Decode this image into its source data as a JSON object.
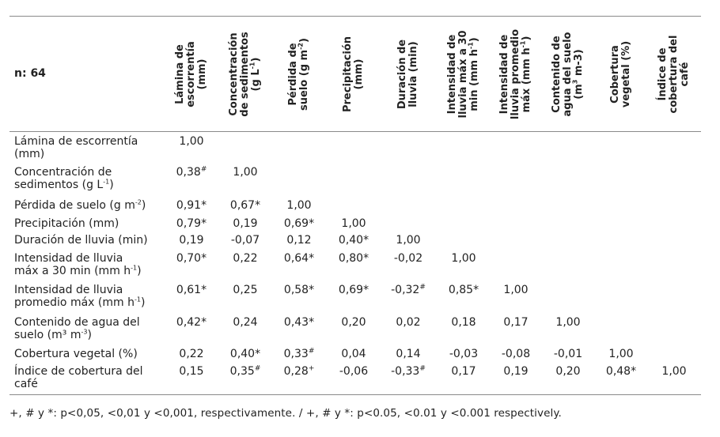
{
  "table": {
    "n_label": "n: 64",
    "columns": [
      {
        "main": "Lámina de\nescorrentía\n(mm)",
        "sup": "",
        "tail": ""
      },
      {
        "main": "Concentración\nde sedimentos\n(g L",
        "sup": "-1",
        "tail": ")"
      },
      {
        "main": "Pérdida de\nsuelo (g m",
        "sup": "-2",
        "tail": ")"
      },
      {
        "main": "Precipitación\n(mm)",
        "sup": "",
        "tail": ""
      },
      {
        "main": "Duración de\nlluvia (min)",
        "sup": "",
        "tail": ""
      },
      {
        "main": "Intensidad de\nlluvia máx a 30\nmin (mm h",
        "sup": "-1",
        "tail": ")"
      },
      {
        "main": "Intensidad de\nlluvia promedio\nmáx (mm h",
        "sup": "-1",
        "tail": ")"
      },
      {
        "main": "Contenido de\nagua del suelo\n(m",
        "sup": "3",
        "tail": " m-3)"
      },
      {
        "main": "Cobertura\nvegetal (%)",
        "sup": "",
        "tail": ""
      },
      {
        "main": "Índice de\ncobertura del\ncafé",
        "sup": "",
        "tail": ""
      }
    ],
    "rows": [
      {
        "label_main": "Lámina de escorrentía\n(mm)",
        "label_sup": "",
        "label_tail": "",
        "cells": [
          {
            "v": "1,00",
            "m": ""
          }
        ]
      },
      {
        "label_main": "Concentración de\nsedimentos (g L",
        "label_sup": "-1",
        "label_tail": ")",
        "cells": [
          {
            "v": "0,38",
            "m": "#"
          },
          {
            "v": "1,00",
            "m": ""
          }
        ]
      },
      {
        "label_main": "Pérdida de suelo (g m",
        "label_sup": "-2",
        "label_tail": ")",
        "cells": [
          {
            "v": "0,91*",
            "m": ""
          },
          {
            "v": "0,67*",
            "m": ""
          },
          {
            "v": "1,00",
            "m": ""
          }
        ]
      },
      {
        "label_main": "Precipitación (mm)",
        "label_sup": "",
        "label_tail": "",
        "cells": [
          {
            "v": "0,79*",
            "m": ""
          },
          {
            "v": "0,19",
            "m": ""
          },
          {
            "v": "0,69*",
            "m": ""
          },
          {
            "v": "1,00",
            "m": ""
          }
        ]
      },
      {
        "label_main": "Duración de lluvia (min)",
        "label_sup": "",
        "label_tail": "",
        "cells": [
          {
            "v": "0,19",
            "m": ""
          },
          {
            "v": "-0,07",
            "m": ""
          },
          {
            "v": "0,12",
            "m": ""
          },
          {
            "v": "0,40*",
            "m": ""
          },
          {
            "v": "1,00",
            "m": ""
          }
        ]
      },
      {
        "label_main": "Intensidad de lluvia\nmáx a 30 min (mm h",
        "label_sup": "-1",
        "label_tail": ")",
        "cells": [
          {
            "v": "0,70*",
            "m": ""
          },
          {
            "v": "0,22",
            "m": ""
          },
          {
            "v": "0,64*",
            "m": ""
          },
          {
            "v": "0,80*",
            "m": ""
          },
          {
            "v": "-0,02",
            "m": ""
          },
          {
            "v": "1,00",
            "m": ""
          }
        ]
      },
      {
        "label_main": "Intensidad de lluvia\npromedio máx (mm h",
        "label_sup": "-1",
        "label_tail": ")",
        "cells": [
          {
            "v": "0,61*",
            "m": ""
          },
          {
            "v": "0,25",
            "m": ""
          },
          {
            "v": "0,58*",
            "m": ""
          },
          {
            "v": "0,69*",
            "m": ""
          },
          {
            "v": "-0,32",
            "m": "#"
          },
          {
            "v": "0,85*",
            "m": ""
          },
          {
            "v": "1,00",
            "m": ""
          }
        ]
      },
      {
        "label_main": "Contenido de agua del\nsuelo (m³ m",
        "label_sup": "-3",
        "label_tail": ")",
        "cells": [
          {
            "v": "0,42*",
            "m": ""
          },
          {
            "v": "0,24",
            "m": ""
          },
          {
            "v": "0,43*",
            "m": ""
          },
          {
            "v": "0,20",
            "m": ""
          },
          {
            "v": "0,02",
            "m": ""
          },
          {
            "v": "0,18",
            "m": ""
          },
          {
            "v": "0,17",
            "m": ""
          },
          {
            "v": "1,00",
            "m": ""
          }
        ]
      },
      {
        "label_main": "Cobertura vegetal (%)",
        "label_sup": "",
        "label_tail": "",
        "cells": [
          {
            "v": "0,22",
            "m": ""
          },
          {
            "v": "0,40*",
            "m": ""
          },
          {
            "v": "0,33",
            "m": "#"
          },
          {
            "v": "0,04",
            "m": ""
          },
          {
            "v": "0,14",
            "m": ""
          },
          {
            "v": "-0,03",
            "m": ""
          },
          {
            "v": "-0,08",
            "m": ""
          },
          {
            "v": "-0,01",
            "m": ""
          },
          {
            "v": "1,00",
            "m": ""
          }
        ]
      },
      {
        "label_main": "Índice de cobertura del\ncafé",
        "label_sup": "",
        "label_tail": "",
        "cells": [
          {
            "v": "0,15",
            "m": ""
          },
          {
            "v": "0,35",
            "m": "#"
          },
          {
            "v": "0,28",
            "m": "+"
          },
          {
            "v": "-0,06",
            "m": ""
          },
          {
            "v": "-0,33",
            "m": "#"
          },
          {
            "v": "0,17",
            "m": ""
          },
          {
            "v": "0,19",
            "m": ""
          },
          {
            "v": "0,20",
            "m": ""
          },
          {
            "v": "0,48*",
            "m": ""
          },
          {
            "v": "1,00",
            "m": ""
          }
        ]
      }
    ],
    "footnote": "+, # y *: p<0,05, <0,01 y <0,001, respectivamente. / +, # y *: p<0.05, <0.01 y <0.001 respectively."
  }
}
